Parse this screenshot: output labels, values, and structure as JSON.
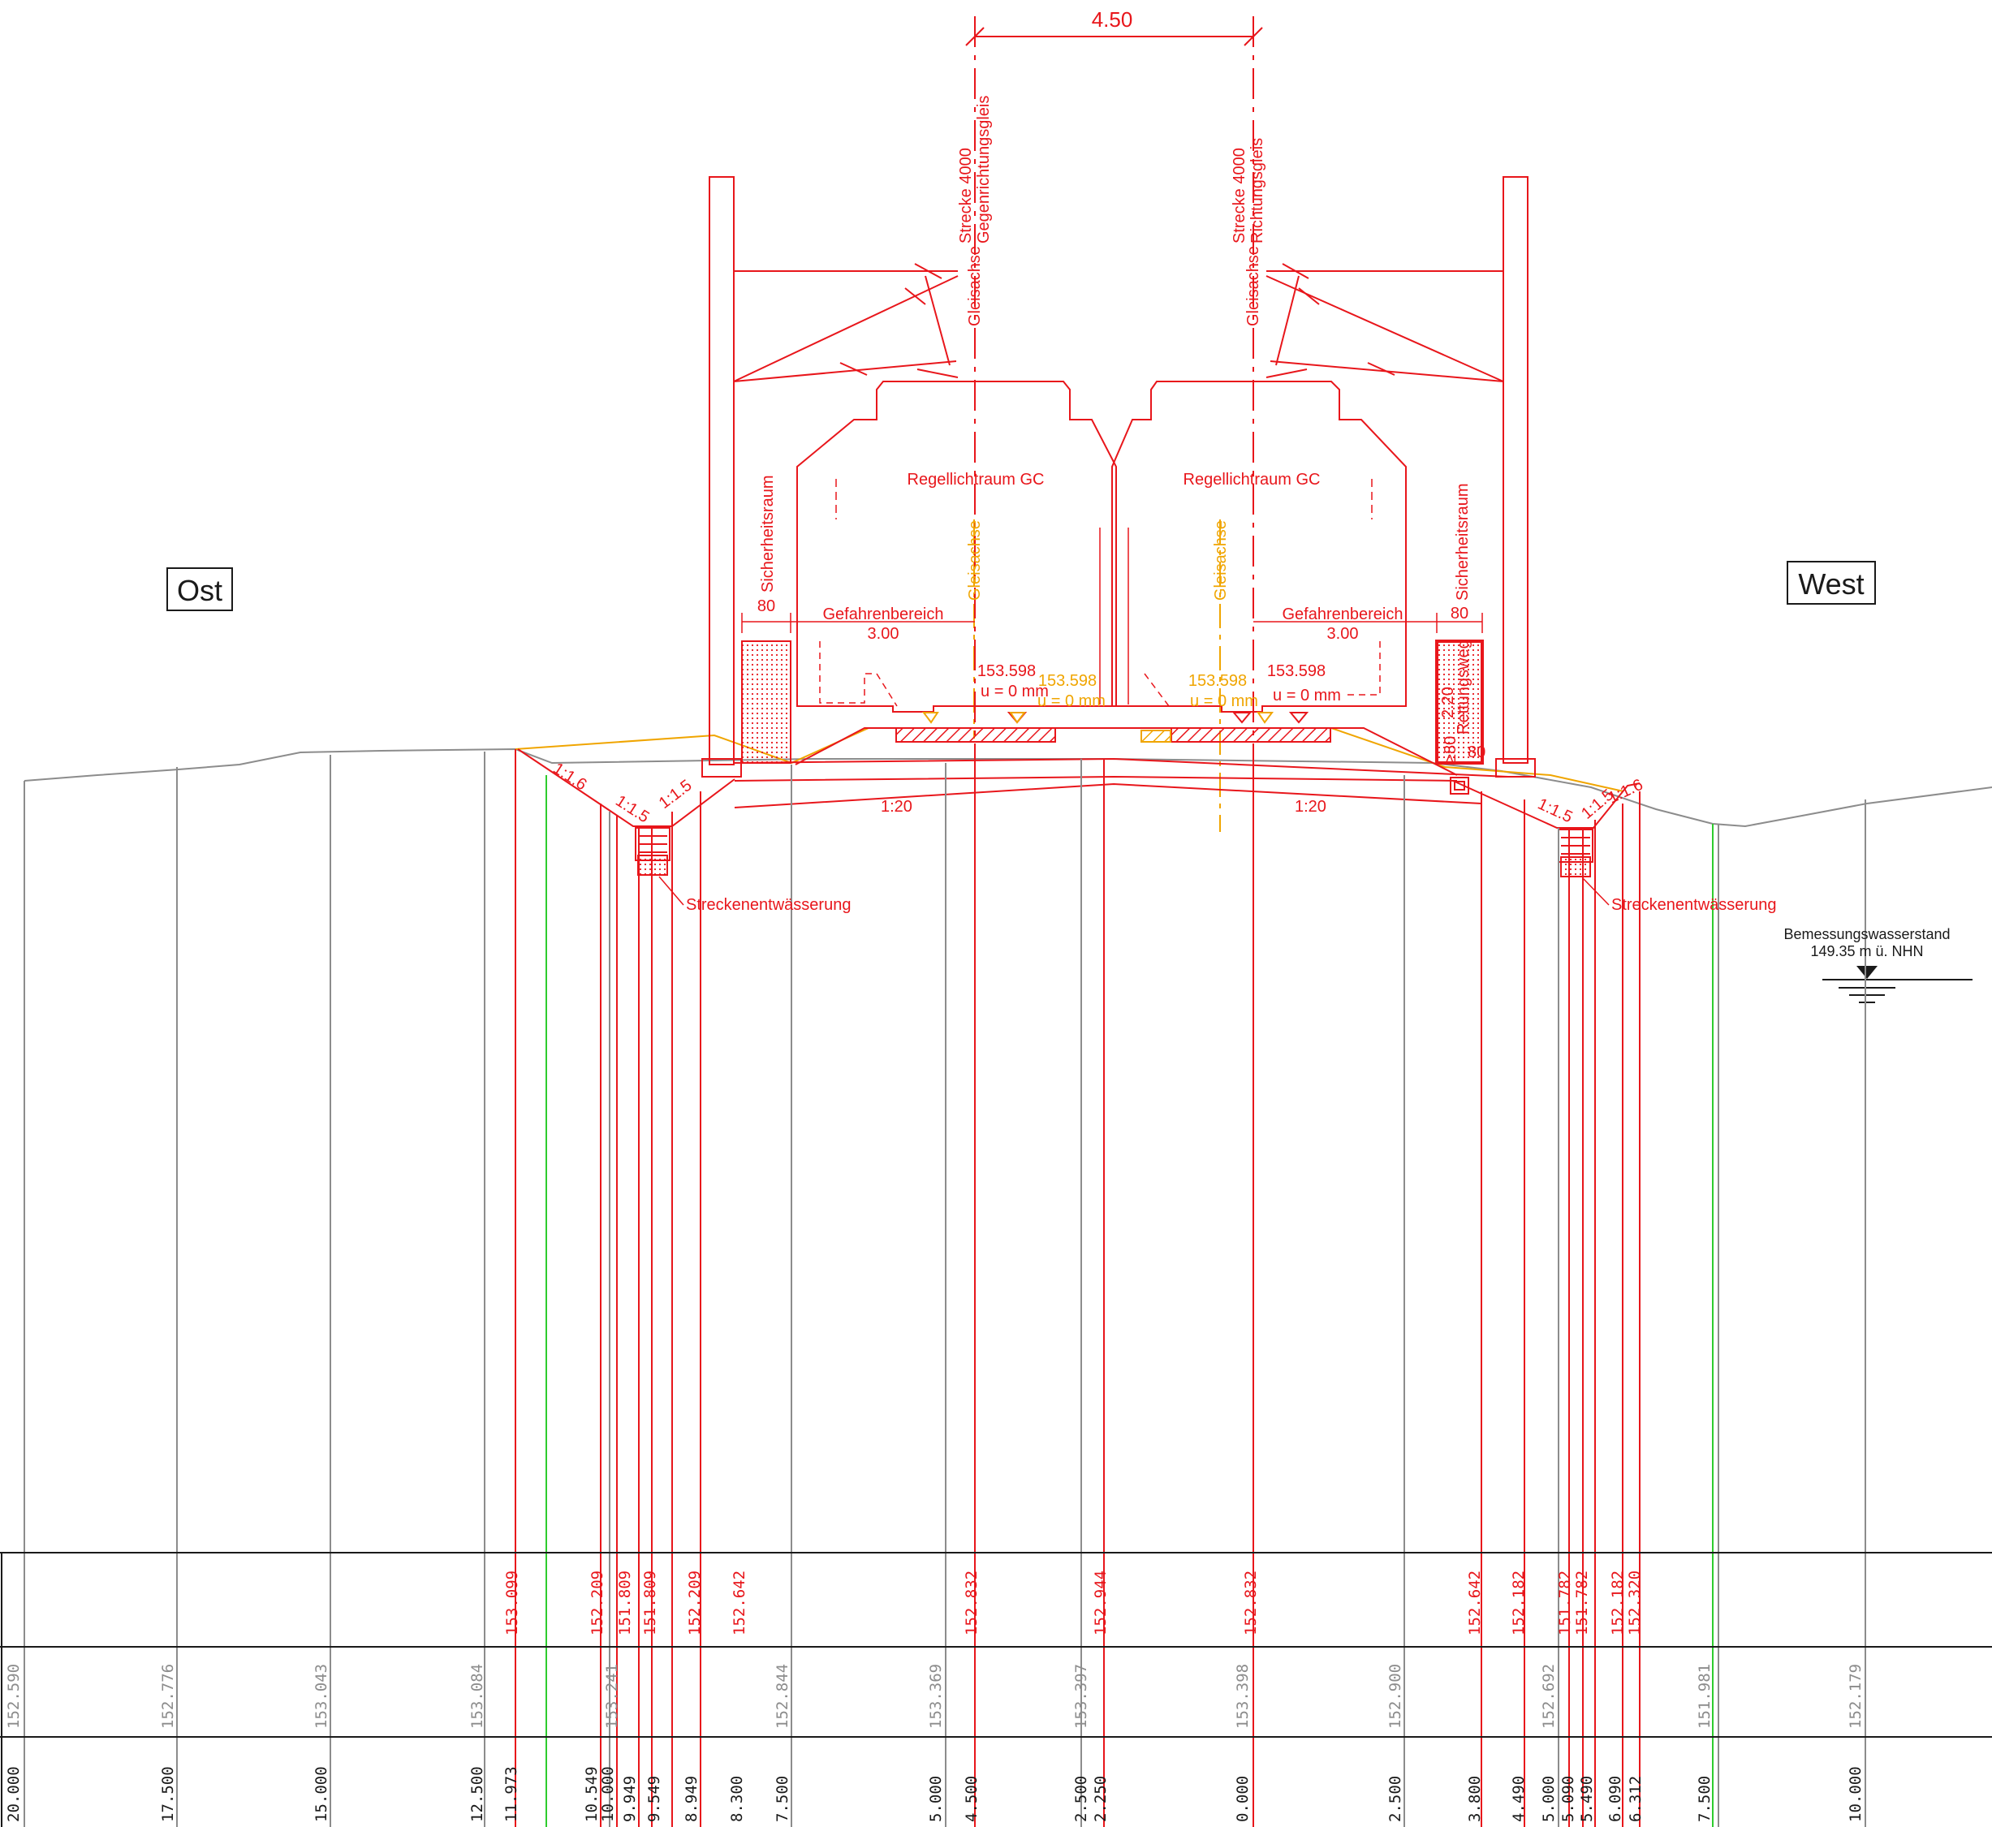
{
  "labels": {
    "ost": "Ost",
    "west": "West",
    "track_spacing": "4.50",
    "track_left_line": "Strecke 4000",
    "track_left_name": "Gegenrichtungsgleis",
    "track_right_line": "Strecke 4000",
    "track_right_name": "Richtungsgleis",
    "gleisachse": "Gleisachse",
    "regellichtraum": "Regellichtraum GC",
    "sicherheitsraum": "Sicherheitsraum",
    "sicherheitsraum_width": "80",
    "gefahrenbereich": "Gefahrenbereich",
    "gefahrenbereich_width": "3.00",
    "rail_height": "153.598",
    "cant": "u = 0 mm",
    "rettungsweg": "Rettungsweg",
    "rettungsweg_height": "2.20",
    "rettungsweg_width": "≥80",
    "slope_1_6": "1:1.6",
    "slope_1_5": "1:1.5",
    "slope_1_20": "1:20",
    "streckenentwaesserung": "Streckenentwässerung",
    "bemessungswasserstand": "Bemessungswasserstand",
    "wasserstand_value": "149.35 m ü. NHN"
  },
  "table": {
    "planned_heights": [
      "153.099",
      "152.209",
      "151.809",
      "151.809",
      "152.209",
      "152.642",
      "152.832",
      "152.944",
      "152.832",
      "152.642",
      "152.182",
      "151.782",
      "151.782",
      "152.182",
      "152.320"
    ],
    "existing_heights": [
      "152.590",
      "152.776",
      "153.043",
      "153.084",
      "153.241",
      "152.844",
      "153.369",
      "153.397",
      "153.398",
      "152.900",
      "152.692",
      "151.981",
      "152.179"
    ],
    "stations": [
      "20.000",
      "17.500",
      "15.000",
      "12.500",
      "11.973",
      "10.549",
      "10.000",
      "9.949",
      "9.549",
      "8.949",
      "8.300",
      "7.500",
      "5.000",
      "4.500",
      "2.500",
      "2.250",
      "0.000",
      "2.500",
      "3.800",
      "4.490",
      "5.000",
      "5.090",
      "5.490",
      "6.090",
      "6.312",
      "7.500",
      "10.000"
    ]
  },
  "colors": {
    "design": "#e8161b",
    "existing_ground": "#8c8c8c",
    "alternate": "#f0a500",
    "limit": "#2ecc2e"
  }
}
